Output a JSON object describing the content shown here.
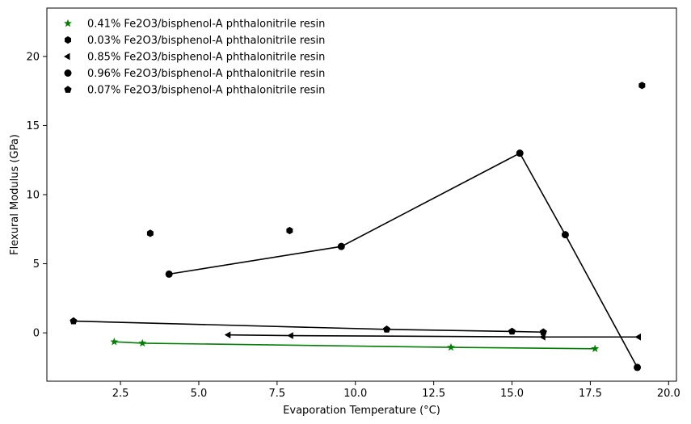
{
  "chart_data": {
    "type": "scatter",
    "title": "",
    "xlabel": "Evaporation Temperature (°C)",
    "ylabel": "Flexural Modulus (GPa)",
    "xlim": [
      0.15,
      20.25
    ],
    "ylim": [
      -3.5,
      23.5
    ],
    "xticks": [
      2.5,
      5.0,
      7.5,
      10.0,
      12.5,
      15.0,
      17.5,
      20.0
    ],
    "yticks": [
      0,
      5,
      10,
      15,
      20
    ],
    "grid": false,
    "legend_position": "top-left",
    "series": [
      {
        "name": "0.41% Fe2O3/bisphenol-A phthalonitrile resin",
        "marker": "star",
        "color": "#008000",
        "connected": true,
        "x": [
          2.3,
          3.2,
          13.05,
          17.65
        ],
        "y": [
          -0.65,
          -0.75,
          -1.05,
          -1.15
        ]
      },
      {
        "name": "0.03% Fe2O3/bisphenol-A phthalonitrile resin",
        "marker": "hexagon",
        "color": "#000000",
        "connected": false,
        "x": [
          3.45,
          7.9,
          19.15
        ],
        "y": [
          7.2,
          7.4,
          17.9
        ]
      },
      {
        "name": "0.85% Fe2O3/bisphenol-A phthalonitrile resin",
        "marker": "triangle-left",
        "color": "#000000",
        "connected": true,
        "x": [
          5.95,
          7.95,
          16.0,
          19.05
        ],
        "y": [
          -0.15,
          -0.2,
          -0.3,
          -0.3
        ]
      },
      {
        "name": "0.96% Fe2O3/bisphenol-A phthalonitrile resin",
        "marker": "circle",
        "color": "#000000",
        "connected": true,
        "x": [
          4.05,
          9.55,
          15.25,
          16.7,
          19.0
        ],
        "y": [
          4.25,
          6.25,
          13.0,
          7.1,
          -2.5
        ]
      },
      {
        "name": "0.07% Fe2O3/bisphenol-A phthalonitrile resin",
        "marker": "pentagon",
        "color": "#000000",
        "connected": true,
        "x": [
          1.0,
          11.0,
          15.0,
          16.0
        ],
        "y": [
          0.85,
          0.25,
          0.1,
          0.05
        ]
      }
    ]
  }
}
